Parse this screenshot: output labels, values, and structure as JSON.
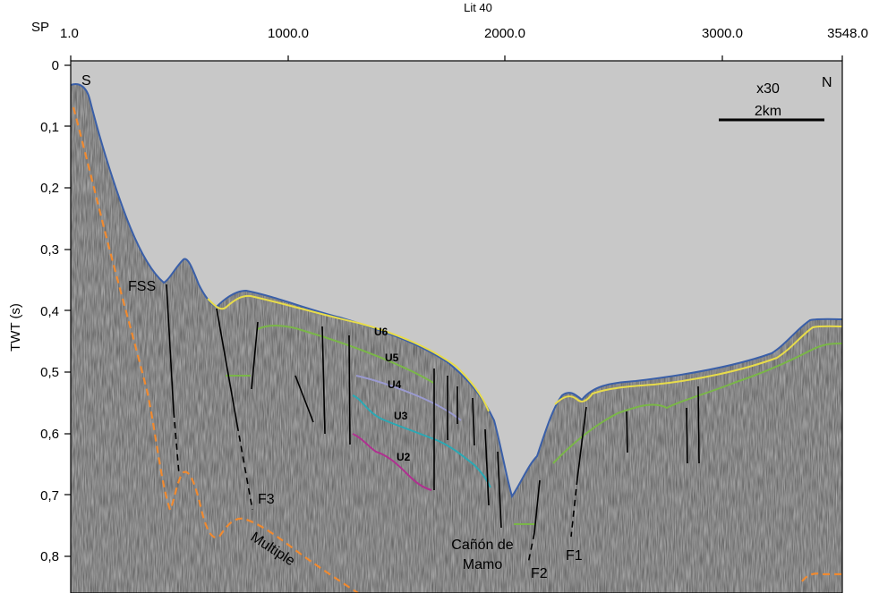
{
  "profile": {
    "title": "Lit 40",
    "sp_label": "SP",
    "sp_ticks": [
      "1.0",
      "1000.0",
      "2000.0",
      "3000.0",
      "3548.0"
    ],
    "y_axis_label": "TWT (s)",
    "y_ticks": [
      "0",
      "0,1",
      "0,2",
      "0,3",
      "0,4",
      "0,5",
      "0,6",
      "0,7",
      "0,8"
    ],
    "south_label": "S",
    "north_label": "N",
    "vertical_exaggeration": "x30",
    "scale_bar_label": "2km"
  },
  "units": [
    "U6",
    "U5",
    "U4",
    "U3",
    "U2"
  ],
  "faults": [
    "FSS",
    "F3",
    "F2",
    "F1"
  ],
  "annotations": {
    "multiple": "Multiple",
    "canyon_line1": "Cañón de",
    "canyon_line2": "Mamo"
  },
  "colors": {
    "water": "#c8c8c8",
    "seafloor": "#3a5fa8",
    "u6_reflector": "#e8dc4a",
    "u5_reflector": "#7ab648",
    "u4_reflector": "#9a9ad0",
    "u3_reflector": "#2aa8b4",
    "u2_reflector": "#b03090",
    "multiple_reflector": "#f08a30",
    "fault": "#000000"
  }
}
